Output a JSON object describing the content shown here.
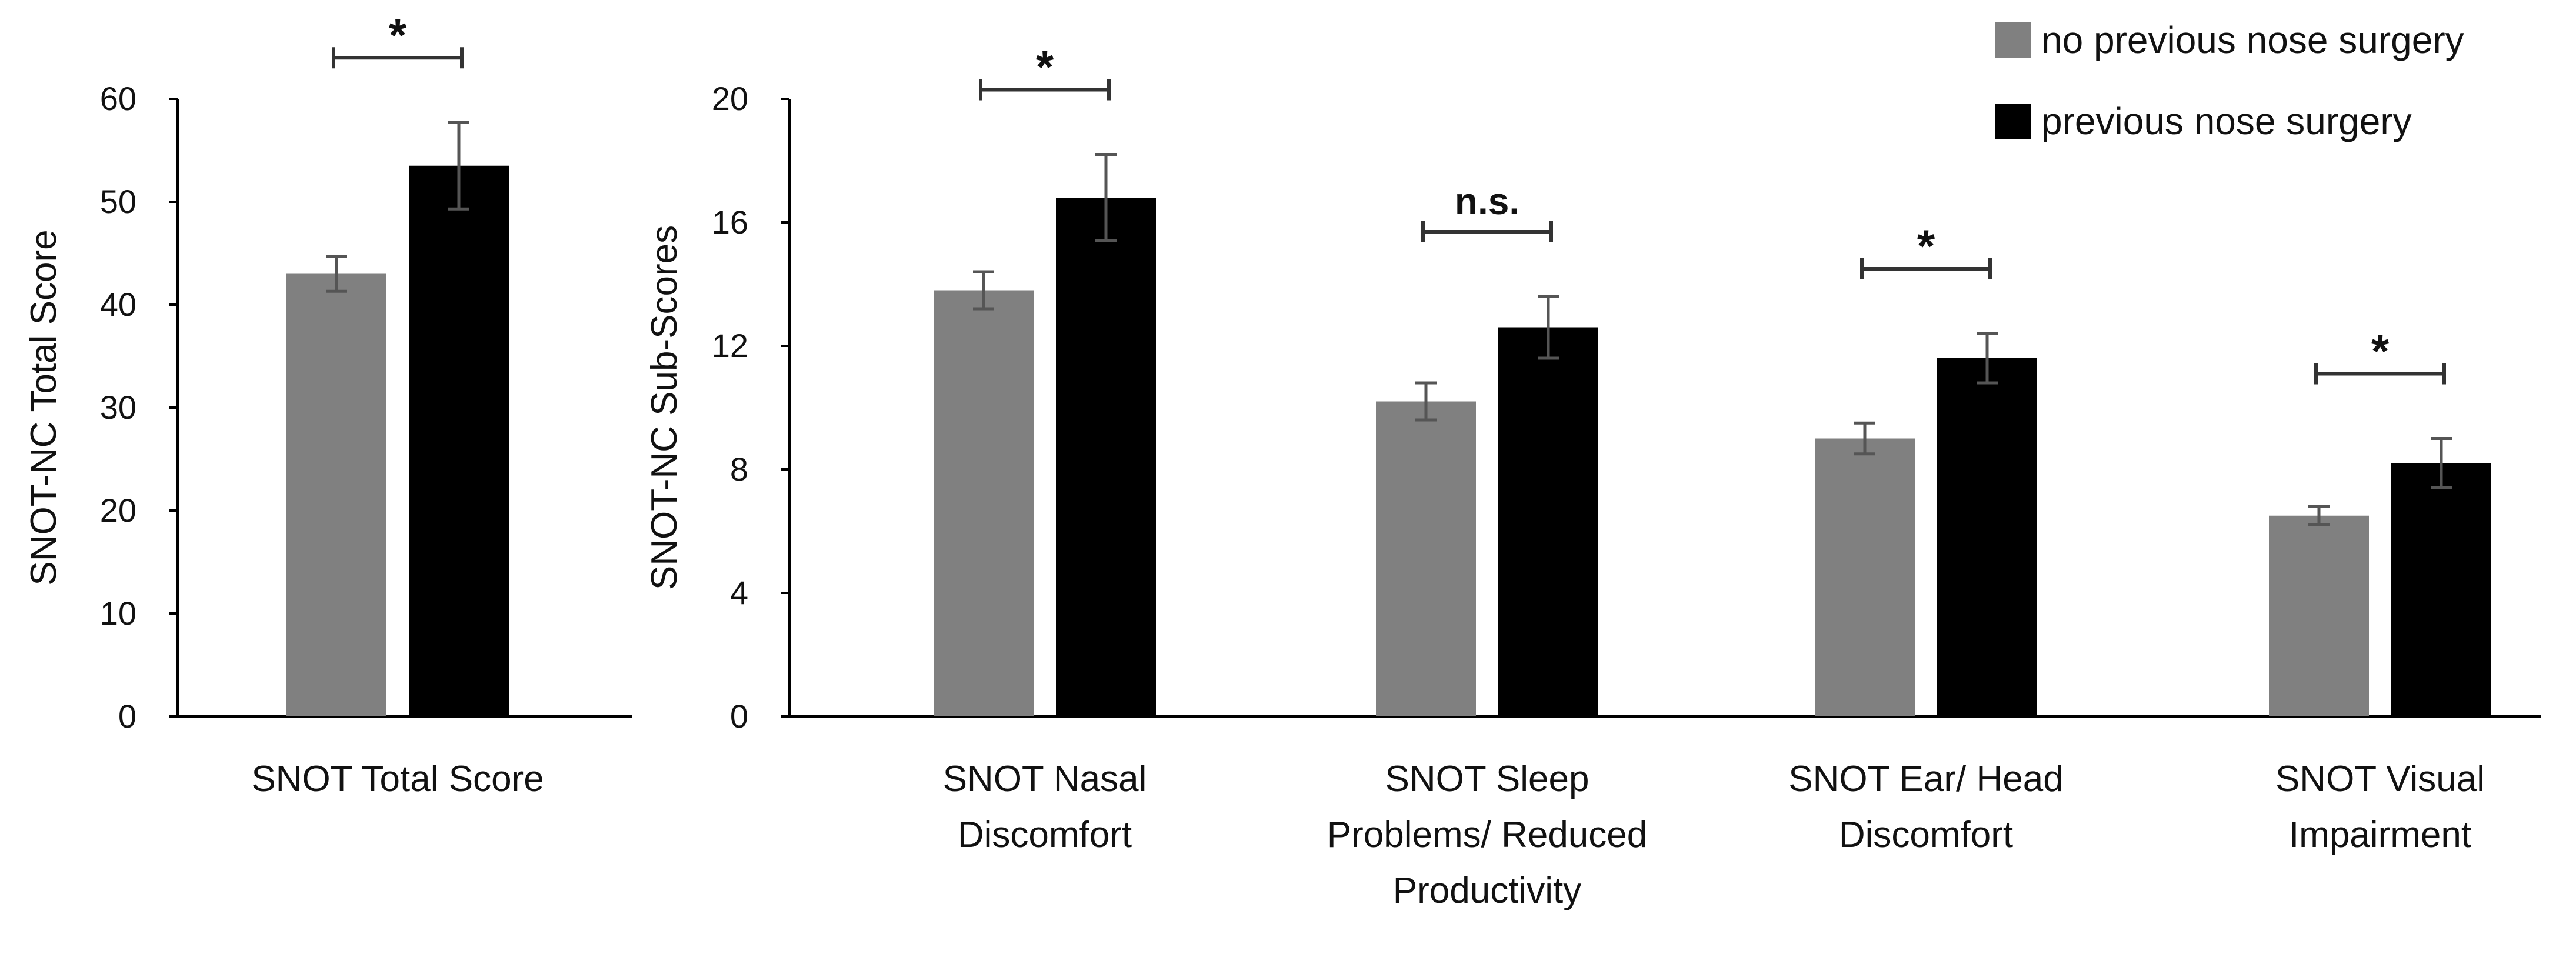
{
  "colors": {
    "no_surgery": "#808080",
    "surgery": "#000000",
    "error": "#555555",
    "axis": "#000000"
  },
  "legend": {
    "items": [
      {
        "label": "no previous nose surgery",
        "color": "#808080"
      },
      {
        "label": "previous nose surgery",
        "color": "#000000"
      }
    ],
    "placement": "top-right"
  },
  "chart_data": [
    {
      "type": "bar",
      "ylabel": "SNOT-NC Total Score",
      "xlabel": "",
      "ylim": [
        0,
        60
      ],
      "yticks": [
        0,
        10,
        20,
        30,
        40,
        50,
        60
      ],
      "categories": [
        "SNOT Total Score"
      ],
      "series": [
        {
          "name": "no previous nose surgery",
          "values": [
            43
          ],
          "errors": [
            1.7
          ]
        },
        {
          "name": "previous nose surgery",
          "values": [
            53.5
          ],
          "errors": [
            4.2
          ]
        }
      ],
      "significance": [
        "*"
      ]
    },
    {
      "type": "bar",
      "ylabel": "SNOT-NC Sub-Scores",
      "xlabel": "",
      "ylim": [
        0,
        20
      ],
      "yticks": [
        0,
        4,
        8,
        12,
        16,
        20
      ],
      "categories": [
        [
          "SNOT Nasal",
          "Discomfort"
        ],
        [
          "SNOT Sleep",
          "Problems/ Reduced",
          "Productivity"
        ],
        [
          "SNOT Ear/ Head",
          "Discomfort"
        ],
        [
          "SNOT Visual",
          "Impairment"
        ]
      ],
      "series": [
        {
          "name": "no previous nose surgery",
          "values": [
            13.8,
            10.2,
            9.0,
            6.5
          ],
          "errors": [
            0.6,
            0.6,
            0.5,
            0.3
          ]
        },
        {
          "name": "previous nose surgery",
          "values": [
            16.8,
            12.6,
            11.6,
            8.2
          ],
          "errors": [
            1.4,
            1.0,
            0.8,
            0.8
          ]
        }
      ],
      "significance": [
        "*",
        "n.s.",
        "*",
        "*"
      ]
    }
  ]
}
